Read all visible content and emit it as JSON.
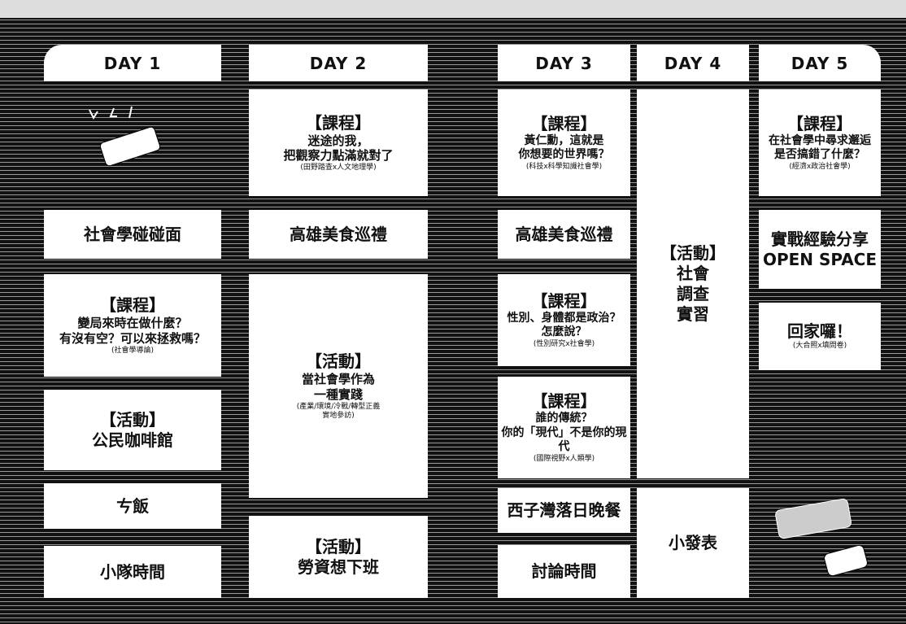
{
  "days": [
    {
      "header": "DAY 1",
      "blocks": [
        {
          "lines": [
            "社會學碰碰面"
          ]
        },
        {
          "lines": [
            "【課程】",
            "變局來時在做什麼？",
            "有沒有空？可以來拯救嗎？",
            "(社會學導論)"
          ]
        },
        {
          "lines": [
            "【活動】",
            "公民咖啡館"
          ]
        },
        {
          "lines": [
            "ㄘ飯"
          ]
        },
        {
          "lines": [
            "小隊時間"
          ]
        }
      ]
    },
    {
      "header": "DAY 2",
      "blocks": [
        {
          "lines": [
            "【課程】",
            "迷途的我，",
            "把觀察力點滿就對了",
            "(田野踏查x人文地理學)"
          ]
        },
        {
          "lines": [
            "高雄美食巡禮"
          ]
        },
        {
          "lines": [
            "【活動】",
            "當社會學作為",
            "一種實踐",
            "(產業/環境/冷戰/轉型正義",
            "實地參訪)"
          ]
        },
        {
          "lines": [
            "【活動】",
            "勞資想下班"
          ]
        }
      ]
    },
    {
      "header": "DAY 3",
      "blocks": [
        {
          "lines": [
            "【課程】",
            "黃仁勳，這就是",
            "你想要的世界嗎？",
            "(科技x科學知識社會學)"
          ]
        },
        {
          "lines": [
            "高雄美食巡禮"
          ]
        },
        {
          "lines": [
            "【課程】",
            "性別、身體都是政治？",
            "怎麼說？",
            "(性別研究x社會學)"
          ]
        },
        {
          "lines": [
            "【課程】",
            "誰的傳統？",
            "你的「現代」不是你的現代",
            "(國際視野x人類學)"
          ]
        },
        {
          "lines": [
            "西子灣落日晚餐"
          ]
        },
        {
          "lines": [
            "討論時間"
          ]
        }
      ]
    },
    {
      "header": "DAY 4",
      "blocks": [
        {
          "lines": [
            "【活動】",
            "社會",
            "調查",
            "實習"
          ]
        },
        {
          "lines": [
            "小發表"
          ]
        }
      ]
    },
    {
      "header": "DAY 5",
      "blocks": [
        {
          "lines": [
            "【課程】",
            "在社會學中尋求邂逅",
            "是否搞錯了什麼？",
            "(經濟x政治社會學)"
          ]
        },
        {
          "lines": [
            "實戰經驗分享",
            "OPEN SPACE"
          ]
        },
        {
          "lines": [
            "回家囉！",
            "(大合照x填問卷)"
          ]
        }
      ]
    }
  ]
}
